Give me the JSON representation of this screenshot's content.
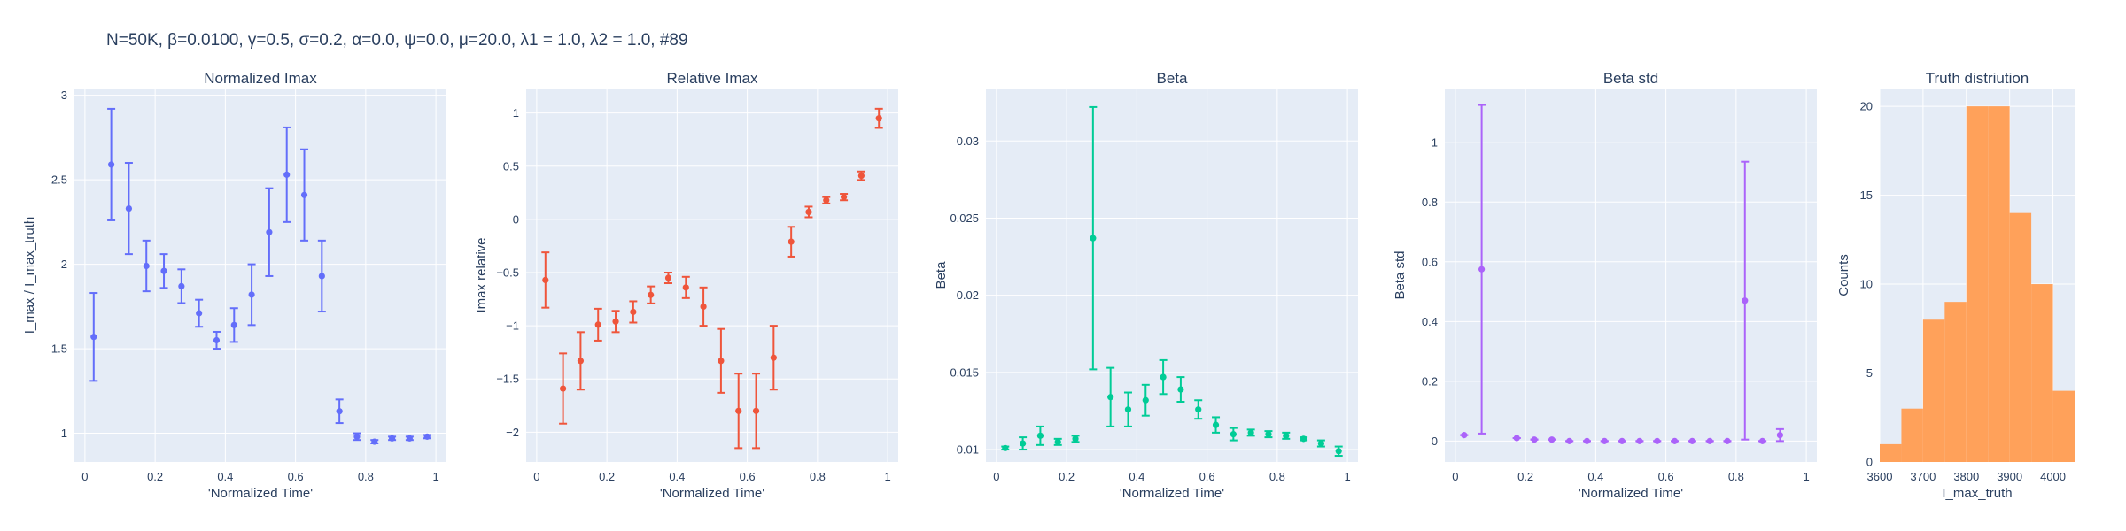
{
  "figure": {
    "suptitle": "N=50K, β=0.0100, γ=0.5, σ=0.2,  α=0.0, ψ=0.0, μ=20.0, λ1 = 1.0, λ2 = 1.0, #89",
    "plot_bg": "#e5ecf6",
    "grid_color": "#ffffff"
  },
  "chart_data": [
    {
      "type": "scatter",
      "title": "Normalized Imax",
      "xlabel": "'Normalized Time'",
      "ylabel": "I_max / I_max_truth",
      "color": "#636efa",
      "xlim": [
        -0.03,
        1.03
      ],
      "ylim": [
        0.83,
        3.04
      ],
      "xticks": [
        0,
        0.2,
        0.4,
        0.6,
        0.8,
        1
      ],
      "xticklabels": [
        "0",
        "0.2",
        "0.4",
        "0.6",
        "0.8",
        "1"
      ],
      "yticks": [
        1,
        1.5,
        2,
        2.5,
        3
      ],
      "yticklabels": [
        "1",
        "1.5",
        "2",
        "2.5",
        "3"
      ],
      "x": [
        0.025,
        0.075,
        0.125,
        0.175,
        0.225,
        0.275,
        0.325,
        0.375,
        0.425,
        0.475,
        0.525,
        0.575,
        0.625,
        0.675,
        0.725,
        0.775,
        0.825,
        0.875,
        0.925,
        0.975
      ],
      "y": [
        1.57,
        2.59,
        2.33,
        1.99,
        1.96,
        1.87,
        1.71,
        1.55,
        1.64,
        1.82,
        2.19,
        2.53,
        2.41,
        1.93,
        1.13,
        0.98,
        0.95,
        0.97,
        0.97,
        0.98
      ],
      "err": [
        0.26,
        0.33,
        0.27,
        0.15,
        0.1,
        0.1,
        0.08,
        0.05,
        0.1,
        0.18,
        0.26,
        0.28,
        0.27,
        0.21,
        0.07,
        0.02,
        0.01,
        0.01,
        0.01,
        0.01
      ]
    },
    {
      "type": "scatter",
      "title": "Relative Imax",
      "xlabel": "'Normalized Time'",
      "ylabel": "Imax relative",
      "color": "#ef553b",
      "xlim": [
        -0.03,
        1.03
      ],
      "ylim": [
        -2.28,
        1.23
      ],
      "xticks": [
        0,
        0.2,
        0.4,
        0.6,
        0.8,
        1
      ],
      "xticklabels": [
        "0",
        "0.2",
        "0.4",
        "0.6",
        "0.8",
        "1"
      ],
      "yticks": [
        -2,
        -1.5,
        -1,
        -0.5,
        0,
        0.5,
        1
      ],
      "yticklabels": [
        "−2",
        "−1.5",
        "−1",
        "−0.5",
        "0",
        "0.5",
        "1"
      ],
      "x": [
        0.025,
        0.075,
        0.125,
        0.175,
        0.225,
        0.275,
        0.325,
        0.375,
        0.425,
        0.475,
        0.525,
        0.575,
        0.625,
        0.675,
        0.725,
        0.775,
        0.825,
        0.875,
        0.925,
        0.975
      ],
      "y": [
        -0.57,
        -1.59,
        -1.33,
        -0.99,
        -0.96,
        -0.87,
        -0.71,
        -0.55,
        -0.64,
        -0.82,
        -1.33,
        -1.8,
        -1.8,
        -1.3,
        -0.21,
        0.07,
        0.18,
        0.21,
        0.41,
        0.95
      ],
      "err": [
        0.26,
        0.33,
        0.27,
        0.15,
        0.1,
        0.1,
        0.08,
        0.05,
        0.1,
        0.18,
        0.3,
        0.35,
        0.35,
        0.3,
        0.14,
        0.05,
        0.03,
        0.03,
        0.04,
        0.09
      ]
    },
    {
      "type": "scatter",
      "title": "Beta",
      "xlabel": "'Normalized Time'",
      "ylabel": "Beta",
      "color": "#00cc96",
      "xlim": [
        -0.03,
        1.03
      ],
      "ylim": [
        0.0092,
        0.0334
      ],
      "xticks": [
        0,
        0.2,
        0.4,
        0.6,
        0.8,
        1
      ],
      "xticklabels": [
        "0",
        "0.2",
        "0.4",
        "0.6",
        "0.8",
        "1"
      ],
      "yticks": [
        0.01,
        0.015,
        0.02,
        0.025,
        0.03
      ],
      "yticklabels": [
        "0.01",
        "0.015",
        "0.02",
        "0.025",
        "0.03"
      ],
      "x": [
        0.025,
        0.075,
        0.125,
        0.175,
        0.225,
        0.275,
        0.325,
        0.375,
        0.425,
        0.475,
        0.525,
        0.575,
        0.625,
        0.675,
        0.725,
        0.775,
        0.825,
        0.875,
        0.925,
        0.975
      ],
      "y": [
        0.0101,
        0.0104,
        0.0109,
        0.0105,
        0.0107,
        0.0237,
        0.0134,
        0.0126,
        0.0132,
        0.0147,
        0.0139,
        0.0126,
        0.0116,
        0.011,
        0.0111,
        0.011,
        0.0109,
        0.0107,
        0.0104,
        0.0099
      ],
      "err": [
        0.0001,
        0.0004,
        0.0006,
        0.0002,
        0.0002,
        0.0085,
        0.0019,
        0.0011,
        0.001,
        0.0011,
        0.0008,
        0.0006,
        0.0005,
        0.0004,
        0.0002,
        0.0002,
        0.0002,
        0.0001,
        0.0002,
        0.0003
      ]
    },
    {
      "type": "scatter",
      "title": "Beta std",
      "xlabel": "'Normalized Time'",
      "ylabel": "Beta std",
      "color": "#ab63fa",
      "xlim": [
        -0.03,
        1.03
      ],
      "ylim": [
        -0.07,
        1.18
      ],
      "xticks": [
        0,
        0.2,
        0.4,
        0.6,
        0.8,
        1
      ],
      "xticklabels": [
        "0",
        "0.2",
        "0.4",
        "0.6",
        "0.8",
        "1"
      ],
      "yticks": [
        0,
        0.2,
        0.4,
        0.6,
        0.8,
        1
      ],
      "yticklabels": [
        "0",
        "0.2",
        "0.4",
        "0.6",
        "0.8",
        "1"
      ],
      "x": [
        0.025,
        0.075,
        0.175,
        0.225,
        0.275,
        0.325,
        0.375,
        0.425,
        0.475,
        0.525,
        0.575,
        0.625,
        0.675,
        0.725,
        0.775,
        0.825,
        0.875,
        0.925
      ],
      "y": [
        0.02,
        0.575,
        0.01,
        0.005,
        0.005,
        0.0,
        0.0,
        0.0,
        0.0,
        0.0,
        0.0,
        0.0,
        0.0,
        0.0,
        0.0,
        0.47,
        0.0,
        0.02
      ],
      "err": [
        0.0,
        0.55,
        0.0,
        0.0,
        0.0,
        0.0,
        0.0,
        0.0,
        0.0,
        0.0,
        0.0,
        0.0,
        0.0,
        0.0,
        0.0,
        0.465,
        0.0,
        0.02
      ]
    },
    {
      "type": "bar",
      "title": "Truth distriution",
      "xlabel": "I_max_truth",
      "ylabel": "Counts",
      "color": "#ffa15a",
      "xlim": [
        3600,
        4050
      ],
      "ylim": [
        0,
        21
      ],
      "xticks": [
        3600,
        3700,
        3800,
        3900,
        4000
      ],
      "xticklabels": [
        "3600",
        "3700",
        "3800",
        "3900",
        "4000"
      ],
      "yticks": [
        0,
        5,
        10,
        15,
        20
      ],
      "yticklabels": [
        "0",
        "5",
        "10",
        "15",
        "20"
      ],
      "bin_edges": [
        3600,
        3650,
        3700,
        3750,
        3800,
        3850,
        3900,
        3950,
        4000,
        4050
      ],
      "values": [
        1,
        3,
        8,
        9,
        20,
        20,
        14,
        10,
        4
      ]
    }
  ]
}
